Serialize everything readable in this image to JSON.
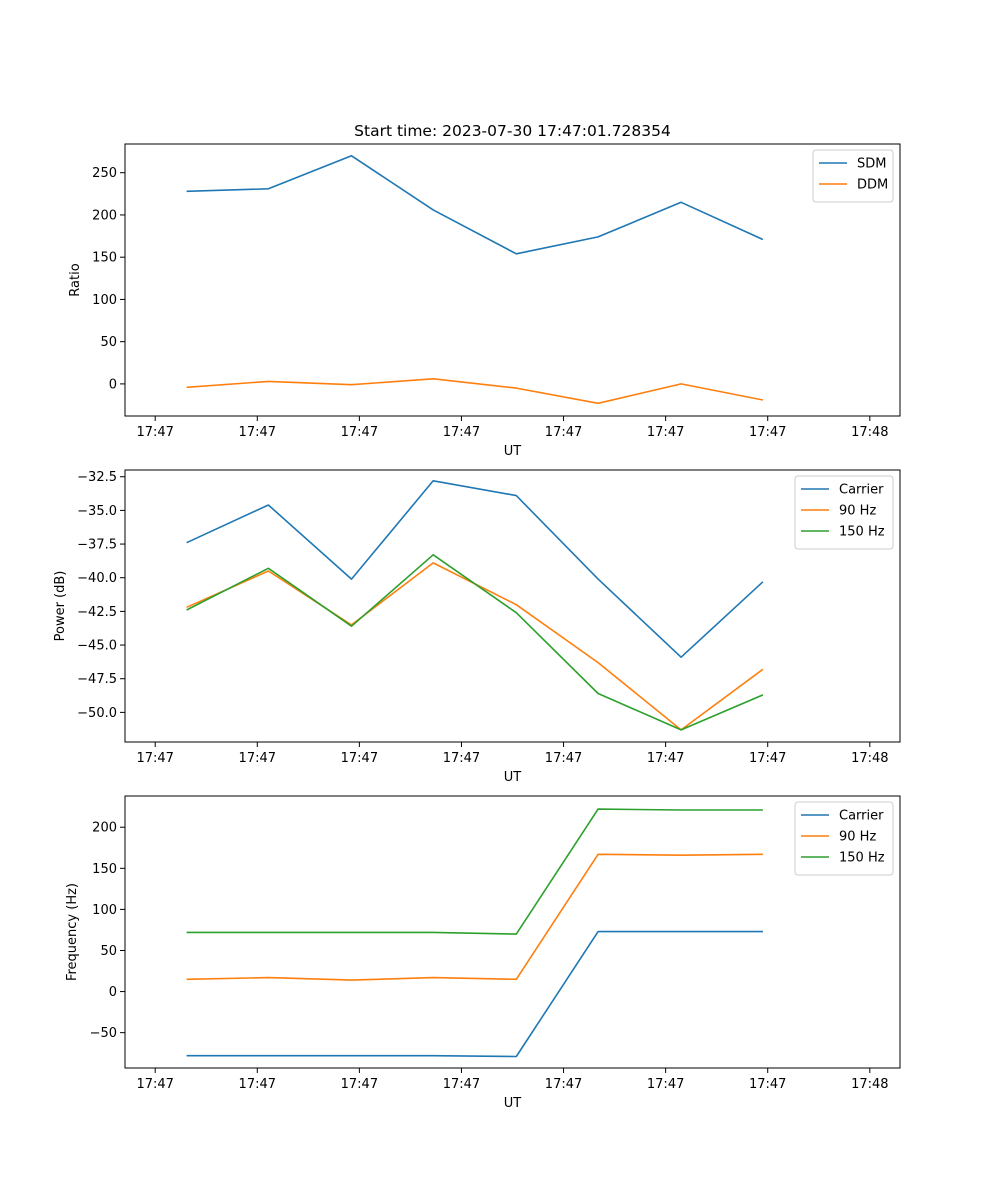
{
  "chart_data": [
    {
      "type": "line",
      "title": "Start time: 2023-07-30 17:47:01.728354",
      "xlabel": "UT",
      "ylabel": "Ratio",
      "x_tick_labels": [
        "17:47",
        "17:47",
        "17:47",
        "17:47",
        "17:47",
        "17:47",
        "17:47",
        "17:48"
      ],
      "xlim": [
        -0.24,
        5.92
      ],
      "ylim": [
        -38,
        284
      ],
      "y_ticks": [
        0,
        50,
        100,
        150,
        200,
        250
      ],
      "y_tick_labels": [
        "0",
        "50",
        "100",
        "150",
        "200",
        "250"
      ],
      "x": [
        0.25,
        0.9,
        1.56,
        2.21,
        2.87,
        3.52,
        4.18,
        4.83
      ],
      "series": [
        {
          "name": "SDM",
          "color": "#1f77b4",
          "values": [
            228,
            231,
            270,
            206,
            154,
            174,
            215,
            171
          ]
        },
        {
          "name": "DDM",
          "color": "#ff7f0e",
          "values": [
            -4,
            3,
            -1,
            6,
            -5,
            -23,
            0,
            -19
          ]
        }
      ],
      "legend": "top-right"
    },
    {
      "type": "line",
      "title": "",
      "xlabel": "UT",
      "ylabel": "Power (dB)",
      "x_tick_labels": [
        "17:47",
        "17:47",
        "17:47",
        "17:47",
        "17:47",
        "17:47",
        "17:47",
        "17:48"
      ],
      "xlim": [
        -0.24,
        5.92
      ],
      "ylim": [
        -52.2,
        -32.0
      ],
      "y_ticks": [
        -50.0,
        -47.5,
        -45.0,
        -42.5,
        -40.0,
        -37.5,
        -35.0,
        -32.5
      ],
      "y_tick_labels": [
        "−50.0",
        "−47.5",
        "−45.0",
        "−42.5",
        "−40.0",
        "−37.5",
        "−35.0",
        "−32.5"
      ],
      "x": [
        0.25,
        0.9,
        1.56,
        2.21,
        2.87,
        3.52,
        4.18,
        4.83
      ],
      "series": [
        {
          "name": "Carrier",
          "color": "#1f77b4",
          "values": [
            -37.4,
            -34.6,
            -40.1,
            -32.8,
            -33.9,
            -40.1,
            -45.9,
            -40.3
          ]
        },
        {
          "name": "90 Hz",
          "color": "#ff7f0e",
          "values": [
            -42.2,
            -39.5,
            -43.5,
            -38.9,
            -42.0,
            -46.3,
            -51.3,
            -46.8
          ]
        },
        {
          "name": "150 Hz",
          "color": "#2ca02c",
          "values": [
            -42.4,
            -39.3,
            -43.6,
            -38.3,
            -42.6,
            -48.6,
            -51.3,
            -48.7
          ]
        }
      ],
      "legend": "top-right"
    },
    {
      "type": "line",
      "title": "",
      "xlabel": "UT",
      "ylabel": "Frequency (Hz)",
      "x_tick_labels": [
        "17:47",
        "17:47",
        "17:47",
        "17:47",
        "17:47",
        "17:47",
        "17:47",
        "17:48"
      ],
      "xlim": [
        -0.24,
        5.92
      ],
      "ylim": [
        -93,
        238
      ],
      "y_ticks": [
        -50,
        0,
        50,
        100,
        150,
        200
      ],
      "y_tick_labels": [
        "−50",
        "0",
        "50",
        "100",
        "150",
        "200"
      ],
      "x": [
        0.25,
        0.9,
        1.56,
        2.21,
        2.87,
        3.52,
        4.18,
        4.83
      ],
      "series": [
        {
          "name": "Carrier",
          "color": "#1f77b4",
          "values": [
            -78,
            -78,
            -78,
            -78,
            -79,
            73,
            73,
            73
          ]
        },
        {
          "name": "90 Hz",
          "color": "#ff7f0e",
          "values": [
            15,
            17,
            14,
            17,
            15,
            167,
            166,
            167
          ]
        },
        {
          "name": "150 Hz",
          "color": "#2ca02c",
          "values": [
            72,
            72,
            72,
            72,
            70,
            222,
            221,
            221
          ]
        }
      ],
      "legend": "top-right"
    }
  ]
}
